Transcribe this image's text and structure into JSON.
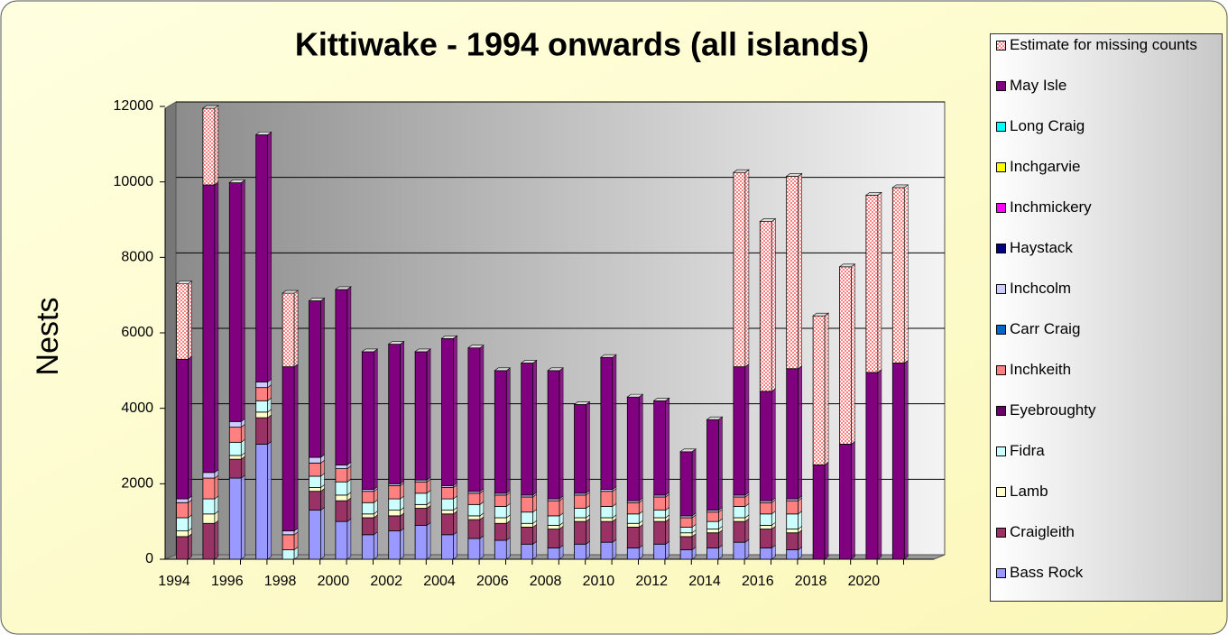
{
  "chart_data": {
    "type": "stacked_bar",
    "title": "Kittiwake - 1994 onwards (all islands)",
    "y_label": "Nests",
    "categories": [
      "1994",
      null,
      "1996",
      null,
      "1998",
      null,
      "2000",
      null,
      "2002",
      null,
      "2004",
      null,
      "2006",
      null,
      "2008",
      null,
      "2010",
      null,
      "2012",
      null,
      "2014",
      null,
      "2016",
      null,
      "2018",
      null,
      "2020",
      null
    ],
    "ylim": [
      0,
      12000
    ],
    "yticks": [
      0,
      2000,
      4000,
      6000,
      8000,
      10000,
      12000
    ],
    "grid": true,
    "legend": "right",
    "series": [
      {
        "name": "Bass Rock",
        "color": "#9999ff",
        "values": [
          0,
          0,
          2150,
          3050,
          0,
          1300,
          1000,
          650,
          750,
          900,
          650,
          550,
          500,
          400,
          300,
          400,
          450,
          300,
          400,
          250,
          300,
          450,
          300,
          250,
          0,
          0,
          0,
          0
        ]
      },
      {
        "name": "Craigleith",
        "color": "#993366",
        "values": [
          600,
          950,
          500,
          700,
          0,
          500,
          550,
          450,
          400,
          450,
          550,
          500,
          450,
          450,
          500,
          600,
          550,
          550,
          600,
          350,
          400,
          550,
          500,
          450,
          0,
          0,
          0,
          0
        ]
      },
      {
        "name": "Lamb",
        "color": "#ffffcc",
        "values": [
          150,
          250,
          100,
          150,
          0,
          100,
          150,
          100,
          150,
          100,
          100,
          100,
          150,
          100,
          100,
          100,
          100,
          100,
          100,
          100,
          100,
          100,
          100,
          100,
          0,
          0,
          0,
          0
        ]
      },
      {
        "name": "Fidra",
        "color": "#ccffff",
        "values": [
          350,
          400,
          350,
          300,
          250,
          300,
          350,
          300,
          300,
          300,
          300,
          300,
          300,
          300,
          250,
          250,
          300,
          250,
          200,
          150,
          200,
          300,
          300,
          400,
          0,
          0,
          0,
          0
        ]
      },
      {
        "name": "Eyebroughty",
        "color": "#660066",
        "values": [
          0,
          0,
          0,
          0,
          0,
          0,
          0,
          0,
          0,
          0,
          0,
          0,
          0,
          0,
          0,
          0,
          0,
          0,
          0,
          0,
          0,
          0,
          0,
          0,
          0,
          0,
          0,
          0
        ]
      },
      {
        "name": "Inchkeith",
        "color": "#ff8080",
        "values": [
          400,
          550,
          400,
          350,
          400,
          350,
          350,
          300,
          350,
          300,
          300,
          300,
          300,
          400,
          400,
          350,
          400,
          300,
          350,
          250,
          250,
          250,
          300,
          350,
          0,
          0,
          0,
          0
        ]
      },
      {
        "name": "Carr Craig",
        "color": "#0066cc",
        "values": [
          0,
          0,
          0,
          0,
          0,
          0,
          0,
          0,
          0,
          0,
          0,
          0,
          0,
          0,
          0,
          0,
          0,
          0,
          0,
          0,
          0,
          0,
          0,
          0,
          0,
          0,
          0,
          0
        ]
      },
      {
        "name": "Inchcolm",
        "color": "#ccccff",
        "values": [
          100,
          150,
          150,
          150,
          100,
          150,
          100,
          50,
          50,
          50,
          50,
          50,
          50,
          50,
          50,
          50,
          50,
          50,
          50,
          50,
          50,
          50,
          50,
          50,
          0,
          0,
          0,
          0
        ]
      },
      {
        "name": "Haystack",
        "color": "#000080",
        "values": [
          0,
          0,
          0,
          0,
          0,
          0,
          0,
          0,
          0,
          0,
          0,
          0,
          0,
          0,
          0,
          0,
          0,
          0,
          0,
          0,
          0,
          0,
          0,
          0,
          0,
          0,
          0,
          0
        ]
      },
      {
        "name": "Inchmickery",
        "color": "#ff00ff",
        "values": [
          0,
          0,
          0,
          0,
          0,
          0,
          0,
          0,
          0,
          0,
          0,
          0,
          0,
          0,
          0,
          0,
          0,
          0,
          0,
          0,
          0,
          0,
          0,
          0,
          0,
          0,
          0,
          0
        ]
      },
      {
        "name": "Inchgarvie",
        "color": "#ffff00",
        "values": [
          0,
          0,
          0,
          0,
          0,
          0,
          0,
          0,
          0,
          0,
          0,
          0,
          0,
          0,
          0,
          0,
          0,
          0,
          0,
          0,
          0,
          0,
          0,
          0,
          0,
          0,
          0,
          0
        ]
      },
      {
        "name": "Long Craig",
        "color": "#00ffff",
        "values": [
          0,
          0,
          0,
          0,
          0,
          0,
          0,
          0,
          0,
          0,
          0,
          0,
          0,
          0,
          0,
          0,
          0,
          0,
          0,
          0,
          0,
          0,
          0,
          0,
          0,
          0,
          0,
          0
        ]
      },
      {
        "name": "May Isle",
        "color": "#800080",
        "values": [
          3700,
          7620,
          6330,
          6550,
          4350,
          4150,
          4650,
          3650,
          3700,
          3400,
          3900,
          3800,
          3250,
          3500,
          3400,
          2350,
          3500,
          2750,
          2500,
          1700,
          2400,
          3400,
          2900,
          3450,
          2500,
          3050,
          4950,
          5200
        ]
      },
      {
        "name": "Estimate for missing counts",
        "color": "#ff8080",
        "pattern": "checker",
        "values": [
          2000,
          2030,
          0,
          0,
          1950,
          0,
          0,
          0,
          0,
          0,
          0,
          0,
          0,
          0,
          0,
          0,
          0,
          0,
          0,
          0,
          0,
          5150,
          4500,
          5100,
          3950,
          4700,
          4700,
          4650
        ]
      }
    ]
  }
}
